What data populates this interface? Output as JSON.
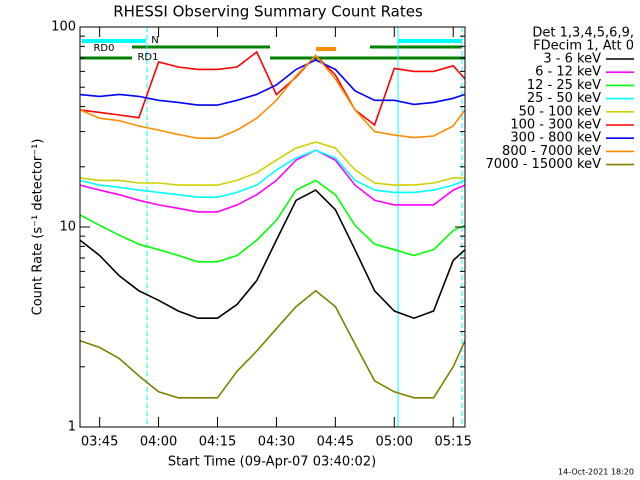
{
  "chart_data": {
    "type": "line",
    "title": "RHESSI Observing Summary Count Rates",
    "x_label": "Start Time (09-Apr-07 03:40:02)",
    "y_label": "Count Rate (s⁻¹ detector⁻¹)",
    "log_y": true,
    "legend_header": [
      "Det 1,3,4,5,6,9,",
      "FDecim 1, Att 0"
    ],
    "legend_position": "right",
    "footer": "14-Oct-2021 18:20",
    "flag_labels": [
      "RD0",
      "N",
      "RD1"
    ],
    "xlim": [
      "03:40",
      "05:18"
    ],
    "xticks": [
      "03:45",
      "04:00",
      "04:15",
      "04:30",
      "04:45",
      "05:00",
      "05:15"
    ],
    "ylim": [
      1,
      100
    ],
    "yticks": [
      1,
      10,
      100
    ],
    "minor_yticks": [
      2,
      3,
      4,
      5,
      6,
      7,
      8,
      9,
      20,
      30,
      40,
      50,
      60,
      70,
      80,
      90
    ],
    "x": [
      "03:40",
      "03:45",
      "03:50",
      "03:55",
      "04:00",
      "04:05",
      "04:10",
      "04:15",
      "04:20",
      "04:25",
      "04:30",
      "04:35",
      "04:40",
      "04:45",
      "04:50",
      "04:55",
      "05:00",
      "05:05",
      "05:10",
      "05:15",
      "05:18"
    ],
    "series": [
      {
        "name": "3 - 6 keV",
        "color": "#000000",
        "values": [
          8.6,
          7.2,
          5.7,
          4.8,
          4.3,
          3.8,
          3.5,
          3.5,
          4.1,
          5.4,
          8.6,
          13.6,
          15.3,
          12.2,
          7.7,
          4.8,
          3.8,
          3.5,
          3.8,
          6.8,
          7.7
        ]
      },
      {
        "name": "6 - 12 keV",
        "color": "#ff00ff",
        "values": [
          16.2,
          15.3,
          14.5,
          13.6,
          12.9,
          12.4,
          11.9,
          11.9,
          12.9,
          14.5,
          17.1,
          21.6,
          24.2,
          21.6,
          16.2,
          13.6,
          12.9,
          12.9,
          12.9,
          15.3,
          16.2
        ]
      },
      {
        "name": "12 - 25 keV",
        "color": "#00ff00",
        "values": [
          11.5,
          10.2,
          9.1,
          8.2,
          7.7,
          7.2,
          6.7,
          6.7,
          7.2,
          8.6,
          10.8,
          15.3,
          17.1,
          14.5,
          10.2,
          8.2,
          7.7,
          7.2,
          7.7,
          9.6,
          10.2
        ]
      },
      {
        "name": "25 - 50 keV",
        "color": "#00ffff",
        "values": [
          17.1,
          16.2,
          15.8,
          15.3,
          14.9,
          14.5,
          14.1,
          14.1,
          14.9,
          16.2,
          19.3,
          22.1,
          24.2,
          22.1,
          17.1,
          15.3,
          14.9,
          14.9,
          15.3,
          16.2,
          17.1
        ]
      },
      {
        "name": "50 - 100 keV",
        "color": "#d0d000",
        "values": [
          17.6,
          17.1,
          17.1,
          16.6,
          16.6,
          16.2,
          16.2,
          16.2,
          17.1,
          18.7,
          21.6,
          24.8,
          26.6,
          24.8,
          19.3,
          16.6,
          16.2,
          16.2,
          16.6,
          17.6,
          17.6
        ]
      },
      {
        "name": "100 - 300 keV",
        "color": "#ff0000",
        "values": [
          38.5,
          37.4,
          36.3,
          35.2,
          66.8,
          63.1,
          61.4,
          61.4,
          63.1,
          75,
          45.9,
          56.2,
          72,
          57.5,
          38.5,
          32.4,
          62.1,
          60,
          60,
          64,
          55
        ]
      },
      {
        "name": "300 - 800 keV",
        "color": "#0000ff",
        "values": [
          45.9,
          45,
          46,
          45,
          43,
          42,
          40.7,
          40.7,
          43,
          46,
          51.3,
          61.4,
          68.4,
          61.4,
          48,
          43,
          43,
          41,
          42,
          44,
          46
        ]
      },
      {
        "name": "800 - 7000 keV",
        "color": "#ff8c00",
        "values": [
          38.5,
          35,
          34,
          32,
          30.5,
          29,
          27.8,
          27.8,
          30.5,
          35,
          43,
          57,
          72,
          55,
          38.5,
          30,
          28.8,
          28,
          28.5,
          32,
          38.5
        ]
      },
      {
        "name": "7000 - 15000 keV",
        "color": "#808000",
        "values": [
          2.7,
          2.5,
          2.2,
          1.8,
          1.5,
          1.4,
          1.4,
          1.4,
          1.9,
          2.4,
          3.1,
          4,
          4.8,
          4,
          2.6,
          1.7,
          1.5,
          1.4,
          1.4,
          2,
          2.7
        ]
      }
    ]
  }
}
